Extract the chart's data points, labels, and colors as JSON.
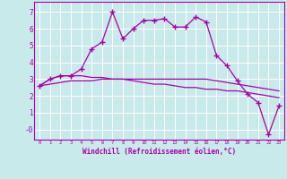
{
  "xlabel": "Windchill (Refroidissement éolien,°C)",
  "bg_color": "#c8eaea",
  "grid_color": "#ffffff",
  "line_color": "#aa00aa",
  "x_values": [
    0,
    1,
    2,
    3,
    4,
    5,
    6,
    7,
    8,
    9,
    10,
    11,
    12,
    13,
    14,
    15,
    16,
    17,
    18,
    19,
    20,
    21,
    22,
    23
  ],
  "line1_y": [
    2.6,
    3.0,
    3.2,
    3.2,
    3.6,
    4.8,
    5.2,
    7.0,
    5.4,
    6.0,
    6.5,
    6.5,
    6.6,
    6.1,
    6.1,
    6.7,
    6.4,
    4.4,
    3.8,
    2.9,
    2.1,
    1.6,
    -0.3,
    1.4
  ],
  "line2_y": [
    2.6,
    3.0,
    3.2,
    3.2,
    3.2,
    3.1,
    3.1,
    3.0,
    3.0,
    2.9,
    2.8,
    2.7,
    2.7,
    2.6,
    2.5,
    2.5,
    2.4,
    2.4,
    2.3,
    2.3,
    2.2,
    2.1,
    2.0,
    1.9
  ],
  "line3_y": [
    2.6,
    2.7,
    2.8,
    2.9,
    2.9,
    2.9,
    3.0,
    3.0,
    3.0,
    3.0,
    3.0,
    3.0,
    3.0,
    3.0,
    3.0,
    3.0,
    3.0,
    2.9,
    2.8,
    2.7,
    2.6,
    2.5,
    2.4,
    2.3
  ],
  "ylim": [
    -0.6,
    7.6
  ],
  "xlim": [
    -0.5,
    23.5
  ],
  "yticks": [
    0,
    1,
    2,
    3,
    4,
    5,
    6,
    7
  ],
  "ytick_labels": [
    "-0",
    "1",
    "2",
    "3",
    "4",
    "5",
    "6",
    "7"
  ],
  "xticks": [
    0,
    1,
    2,
    3,
    4,
    5,
    6,
    7,
    8,
    9,
    10,
    11,
    12,
    13,
    14,
    15,
    16,
    17,
    18,
    19,
    20,
    21,
    22,
    23
  ],
  "marker": "+",
  "markersize": 4,
  "linewidth": 0.9
}
